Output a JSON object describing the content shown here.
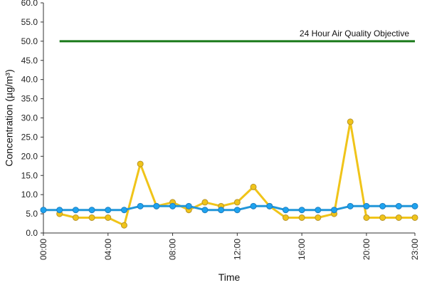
{
  "chart_data": {
    "type": "line",
    "xlabel": "Time",
    "ylabel": "Concentration (µg/m³)",
    "ylim": [
      0,
      60
    ],
    "yticks": [
      "0.0",
      "5.0",
      "10.0",
      "15.0",
      "20.0",
      "25.0",
      "30.0",
      "35.0",
      "40.0",
      "45.0",
      "50.0",
      "55.0",
      "60.0"
    ],
    "xlim": [
      0,
      23
    ],
    "xticks": [
      {
        "x": 0,
        "label": "00:00"
      },
      {
        "x": 4,
        "label": "04:00"
      },
      {
        "x": 8,
        "label": "08:00"
      },
      {
        "x": 12,
        "label": "12:00"
      },
      {
        "x": 16,
        "label": "16:00"
      },
      {
        "x": 20,
        "label": "20:00"
      },
      {
        "x": 23,
        "label": "23:00"
      }
    ],
    "objective": {
      "label": "24 Hour Air Quality Objective",
      "value": 50,
      "x_start": 1,
      "x_end": 23,
      "color": "#1a7a1a"
    },
    "series": [
      {
        "color": "#f0c419",
        "marker_fill": "#f0c419",
        "marker_stroke": "#b8952a",
        "x": [
          1,
          2,
          3,
          4,
          5,
          6,
          7,
          8,
          9,
          10,
          11,
          12,
          13,
          14,
          15,
          16,
          17,
          18,
          19,
          20,
          21,
          22,
          23
        ],
        "values": [
          5,
          4,
          4,
          4,
          2,
          18,
          7,
          8,
          6,
          8,
          7,
          8,
          12,
          7,
          4,
          4,
          4,
          5,
          29,
          4,
          4,
          4,
          4
        ]
      },
      {
        "color": "#2196d9",
        "marker_fill": "#1ea3f0",
        "marker_stroke": "#1e7fc0",
        "x": [
          0,
          1,
          2,
          3,
          4,
          5,
          6,
          7,
          8,
          9,
          10,
          11,
          12,
          13,
          14,
          15,
          16,
          17,
          18,
          19,
          20,
          21,
          22,
          23
        ],
        "values": [
          6,
          6,
          6,
          6,
          6,
          6,
          7,
          7,
          7,
          7,
          6,
          6,
          6,
          7,
          7,
          6,
          6,
          6,
          6,
          7,
          7,
          7,
          7,
          7
        ]
      }
    ]
  }
}
